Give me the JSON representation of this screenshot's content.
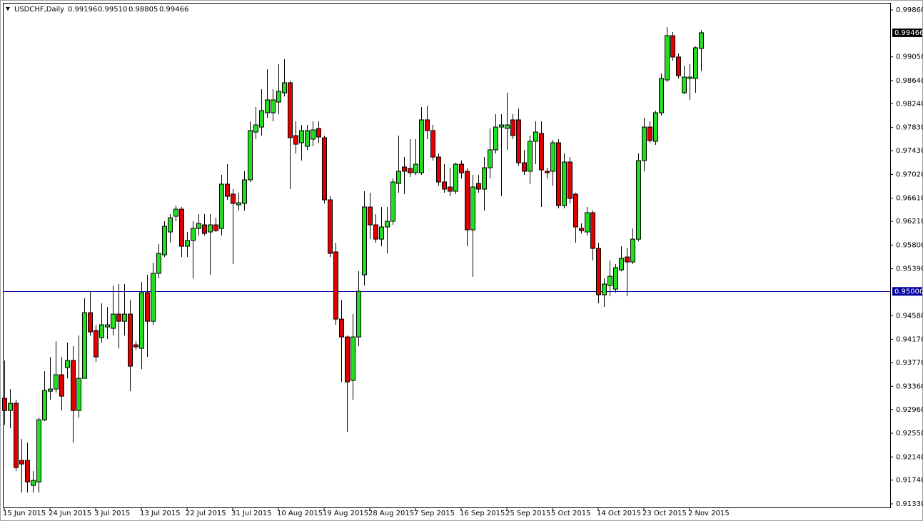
{
  "chart_data": {
    "type": "candlestick",
    "symbol": "USDCHF,Daily",
    "quote_labels": [
      "0.99196",
      "0.99510",
      "0.98805",
      "0.99466"
    ],
    "categories": [
      "15 Jun 2015",
      null,
      null,
      null,
      null,
      null,
      null,
      null,
      "24 Jun 2015",
      null,
      null,
      null,
      null,
      null,
      null,
      null,
      "3 Jul 2015",
      null,
      null,
      null,
      null,
      null,
      null,
      null,
      "13 Jul 2015",
      null,
      null,
      null,
      null,
      null,
      null,
      null,
      "22 Jul 2015",
      null,
      null,
      null,
      null,
      null,
      null,
      null,
      "31 Jul 2015",
      null,
      null,
      null,
      null,
      null,
      null,
      null,
      "10 Aug 2015",
      null,
      null,
      null,
      null,
      null,
      null,
      null,
      "19 Aug 2015",
      null,
      null,
      null,
      null,
      null,
      null,
      null,
      "28 Aug 2015",
      null,
      null,
      null,
      null,
      null,
      null,
      null,
      "7 Sep 2015",
      null,
      null,
      null,
      null,
      null,
      null,
      null,
      "16 Sep 2015",
      null,
      null,
      null,
      null,
      null,
      null,
      null,
      "25 Sep 2015",
      null,
      null,
      null,
      null,
      null,
      null,
      null,
      "5 Oct 2015",
      null,
      null,
      null,
      null,
      null,
      null,
      null,
      "14 Oct 2015",
      null,
      null,
      null,
      null,
      null,
      null,
      null,
      "23 Oct 2015",
      null,
      null,
      null,
      null,
      null,
      null,
      null,
      "2 Nov 2015",
      null,
      null
    ],
    "open": [
      0.93153,
      0.92943,
      0.93067,
      0.9208,
      0.9208,
      0.91649,
      0.9171,
      0.92783,
      0.93276,
      0.93313,
      0.9356,
      0.93683,
      0.93806,
      0.92943,
      0.93498,
      0.94632,
      0.94324,
      0.94201,
      0.94386,
      0.94361,
      0.94608,
      0.94484,
      0.94608,
      0.94078,
      0.94016,
      0.94978,
      0.94484,
      0.95311,
      0.95631,
      0.96026,
      0.96297,
      0.9642,
      0.95779,
      0.95878,
      0.96087,
      0.96149,
      0.96026,
      0.96149,
      0.96087,
      0.96852,
      0.96679,
      0.96494,
      0.96519,
      0.96926,
      0.97752,
      0.97838,
      0.98085,
      0.98085,
      0.9827,
      0.9843,
      0.98603,
      0.9769,
      0.97567,
      0.97505,
      0.97629,
      0.97814,
      0.97653,
      0.96581,
      0.95681,
      0.94521,
      0.94213,
      0.93461,
      0.94213,
      0.95286,
      0.96457,
      0.96149,
      0.95902,
      0.96112,
      0.96211,
      0.96864,
      0.97148,
      0.97123,
      0.97049,
      0.97049,
      0.97962,
      0.97777,
      0.9732,
      0.96889,
      0.96803,
      0.96729,
      0.97197,
      0.97074,
      0.96063,
      0.96864,
      0.96766,
      0.97135,
      0.97444,
      0.97838,
      0.97814,
      0.97962,
      0.97962,
      0.97222,
      0.97074,
      0.97592,
      0.97727,
      0.97074,
      0.97074,
      0.97567,
      0.96482,
      0.97234,
      0.96679,
      0.96087,
      0.96026,
      0.96359,
      0.95742,
      0.94941,
      0.95101,
      0.95039,
      0.95372,
      0.95594,
      0.95508,
      0.95902,
      0.97259,
      0.97838,
      0.97592,
      0.98085,
      0.98652,
      0.99416,
      0.99047,
      0.9843,
      0.98677,
      0.98677,
      0.99196
    ],
    "high": [
      0.93806,
      0.93313,
      0.93128,
      0.9245,
      0.92388,
      0.91895,
      0.9282,
      0.93621,
      0.93868,
      0.94139,
      0.93868,
      0.94115,
      0.94053,
      0.94238,
      0.94879,
      0.95002,
      0.94423,
      0.94793,
      0.94731,
      0.95101,
      0.95126,
      0.95126,
      0.94854,
      0.94139,
      0.95163,
      0.95286,
      0.95496,
      0.95816,
      0.96211,
      0.96334,
      0.96482,
      0.96457,
      0.96026,
      0.96211,
      0.96334,
      0.96334,
      0.96334,
      0.96272,
      0.97012,
      0.97197,
      0.96766,
      0.96704,
      0.97074,
      0.97937,
      0.98183,
      0.98492,
      0.98837,
      0.98492,
      0.98923,
      0.9901,
      0.9864,
      0.97937,
      0.97875,
      0.97875,
      0.97937,
      0.97937,
      0.9769,
      0.96642,
      0.95841,
      0.94854,
      0.94238,
      0.94608,
      0.95348,
      0.96729,
      0.96704,
      0.96334,
      0.96457,
      0.96457,
      0.9695,
      0.9769,
      0.9732,
      0.97629,
      0.97629,
      0.98183,
      0.98208,
      0.97875,
      0.97382,
      0.97197,
      0.97135,
      0.97222,
      0.97259,
      0.97123,
      0.97012,
      0.97012,
      0.9732,
      0.97814,
      0.9806,
      0.9806,
      0.9843,
      0.9806,
      0.98159,
      0.97444,
      0.9769,
      0.97937,
      0.97937,
      0.97135,
      0.97616,
      0.97629,
      0.97382,
      0.9732,
      0.96704,
      0.96174,
      0.96457,
      0.96396,
      0.95841,
      0.95224,
      0.95533,
      0.95471,
      0.95779,
      0.95754,
      0.96087,
      0.97382,
      0.97999,
      0.97937,
      0.98122,
      0.98763,
      0.99564,
      0.99478,
      0.99108,
      0.98899,
      0.98923,
      0.99232,
      0.9951
    ],
    "low": [
      0.92697,
      0.92635,
      0.91895,
      0.91525,
      0.91525,
      0.91525,
      0.91525,
      0.92758,
      0.93128,
      0.93251,
      0.92943,
      0.93498,
      0.92388,
      0.9282,
      0.93498,
      0.94238,
      0.93782,
      0.94115,
      0.94176,
      0.94238,
      0.94016,
      0.94238,
      0.93276,
      0.93991,
      0.93658,
      0.93868,
      0.94423,
      0.95224,
      0.95594,
      0.95841,
      0.96211,
      0.95594,
      0.95594,
      0.95224,
      0.95964,
      0.95964,
      0.95286,
      0.96026,
      0.95964,
      0.96581,
      0.95471,
      0.96396,
      0.96396,
      0.96889,
      0.97629,
      0.9769,
      0.97999,
      0.97937,
      0.9806,
      0.98368,
      0.96766,
      0.97382,
      0.97259,
      0.97444,
      0.97505,
      0.97567,
      0.96519,
      0.95594,
      0.94423,
      0.93436,
      0.92573,
      0.93128,
      0.94053,
      0.95101,
      0.95902,
      0.95841,
      0.95779,
      0.95656,
      0.96149,
      0.96704,
      0.96679,
      0.96975,
      0.97012,
      0.97012,
      0.97629,
      0.97259,
      0.96827,
      0.96704,
      0.96642,
      0.96679,
      0.9695,
      0.95779,
      0.95249,
      0.96704,
      0.96396,
      0.9695,
      0.97382,
      0.96642,
      0.97444,
      0.97629,
      0.97172,
      0.97012,
      0.96852,
      0.97197,
      0.96457,
      0.9695,
      0.96827,
      0.96433,
      0.96433,
      0.96519,
      0.95841,
      0.96001,
      0.95964,
      0.95533,
      0.94793,
      0.94731,
      0.94916,
      0.94978,
      0.95348,
      0.94916,
      0.95471,
      0.95865,
      0.97074,
      0.97567,
      0.9753,
      0.98036,
      0.98615,
      0.98985,
      0.98677,
      0.98405,
      0.98307,
      0.9843,
      0.98805
    ],
    "close": [
      0.92943,
      0.93067,
      0.91957,
      0.92018,
      0.9171,
      0.91735,
      0.92783,
      0.93288,
      0.93313,
      0.9356,
      0.9319,
      0.93806,
      0.92943,
      0.93498,
      0.94632,
      0.943,
      0.93868,
      0.94423,
      0.94423,
      0.94608,
      0.94484,
      0.94608,
      0.93708,
      0.94041,
      0.94978,
      0.94484,
      0.95311,
      0.95656,
      0.96124,
      0.96272,
      0.9642,
      0.95779,
      0.95878,
      0.96087,
      0.96174,
      0.96001,
      0.96149,
      0.9605,
      0.96852,
      0.96642,
      0.96519,
      0.96531,
      0.96926,
      0.97777,
      0.97875,
      0.98122,
      0.98307,
      0.98307,
      0.98455,
      0.98603,
      0.97653,
      0.97542,
      0.97777,
      0.97777,
      0.97789,
      0.97666,
      0.96581,
      0.95656,
      0.94521,
      0.94213,
      0.93436,
      0.94213,
      0.95002,
      0.96457,
      0.96149,
      0.95902,
      0.96112,
      0.96211,
      0.96889,
      0.97074,
      0.97074,
      0.97049,
      0.97197,
      0.97962,
      0.97777,
      0.9732,
      0.96889,
      0.96766,
      0.96729,
      0.97197,
      0.97049,
      0.96063,
      0.96803,
      0.96766,
      0.97135,
      0.97444,
      0.97838,
      0.97875,
      0.97875,
      0.9769,
      0.97222,
      0.97074,
      0.97592,
      0.97752,
      0.97098,
      0.97049,
      0.97567,
      0.96482,
      0.97234,
      0.96605,
      0.96112,
      0.9605,
      0.96359,
      0.95742,
      0.94941,
      0.95126,
      0.95261,
      0.95409,
      0.9557,
      0.95508,
      0.95902,
      0.97259,
      0.97838,
      0.97604,
      0.98085,
      0.98677,
      0.99416,
      0.99047,
      0.98726,
      0.98701,
      0.98701,
      0.99207,
      0.99466
    ],
    "up_color": "#22dd22",
    "down_color": "#e00000",
    "ylim": [
      0.91256,
      0.99983
    ],
    "yticks": [
      {
        "value": 0.9986,
        "label": "0.99860"
      },
      {
        "value": 0.9905,
        "label": "0.99050"
      },
      {
        "value": 0.9864,
        "label": "0.98640"
      },
      {
        "value": 0.9824,
        "label": "0.98240"
      },
      {
        "value": 0.9783,
        "label": "0.97830"
      },
      {
        "value": 0.9743,
        "label": "0.97430"
      },
      {
        "value": 0.9702,
        "label": "0.97020"
      },
      {
        "value": 0.9661,
        "label": "0.96610"
      },
      {
        "value": 0.9621,
        "label": "0.96210"
      },
      {
        "value": 0.958,
        "label": "0.95800"
      },
      {
        "value": 0.9539,
        "label": "0.95390"
      },
      {
        "value": 0.9458,
        "label": "0.94580"
      },
      {
        "value": 0.9417,
        "label": "0.94170"
      },
      {
        "value": 0.9377,
        "label": "0.93770"
      },
      {
        "value": 0.9336,
        "label": "0.93360"
      },
      {
        "value": 0.9296,
        "label": "0.92960"
      },
      {
        "value": 0.9255,
        "label": "0.92550"
      },
      {
        "value": 0.9214,
        "label": "0.92140"
      },
      {
        "value": 0.9174,
        "label": "0.91740"
      },
      {
        "value": 0.9133,
        "label": "0.91330"
      }
    ],
    "last_price": {
      "value": 0.99466,
      "label": "0.99466"
    },
    "hline": {
      "value": 0.95,
      "label": "0.95000",
      "color": "#0000a0"
    },
    "grid": false
  }
}
